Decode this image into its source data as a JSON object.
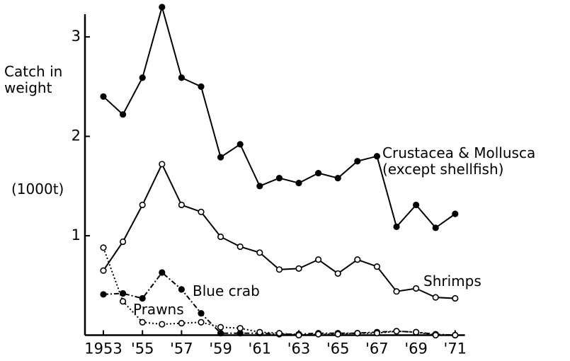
{
  "chart_data": {
    "type": "line",
    "y_label": "Catch in weight",
    "y_unit": "(1000t)",
    "x": [
      1953,
      1954,
      1955,
      1956,
      1957,
      1958,
      1959,
      1960,
      1961,
      1962,
      1963,
      1964,
      1965,
      1966,
      1967,
      1968,
      1969,
      1970,
      1971
    ],
    "series": [
      {
        "name": "Crustacea & Mollusca (except shellfish)",
        "color": "#000000",
        "dash": "solid",
        "marker": "filled",
        "values": [
          2.4,
          2.22,
          2.59,
          3.3,
          2.59,
          2.5,
          1.79,
          1.92,
          1.5,
          1.58,
          1.53,
          1.63,
          1.58,
          1.75,
          1.8,
          1.09,
          1.31,
          1.08,
          1.22
        ]
      },
      {
        "name": "Shrimps",
        "color": "#000000",
        "dash": "solid",
        "marker": "open",
        "values": [
          0.65,
          0.94,
          1.31,
          1.72,
          1.31,
          1.24,
          0.99,
          0.89,
          0.83,
          0.66,
          0.67,
          0.76,
          0.62,
          0.76,
          0.69,
          0.44,
          0.47,
          0.38,
          0.37
        ]
      },
      {
        "name": "Blue crab",
        "color": "#000000",
        "dash": "dashdot",
        "marker": "filled",
        "values": [
          0.41,
          0.42,
          0.37,
          0.63,
          0.46,
          0.22,
          0.02,
          0.02,
          0.02,
          0.01,
          0.01,
          0.02,
          0.02,
          0.02,
          0.03,
          0.04,
          0.03,
          0.01,
          0.0
        ]
      },
      {
        "name": "Prawns",
        "color": "#000000",
        "dash": "dotted",
        "marker": "open",
        "values": [
          0.88,
          0.34,
          0.13,
          0.11,
          0.12,
          0.13,
          0.08,
          0.07,
          0.03,
          0.02,
          0.0,
          0.01,
          0.01,
          0.02,
          0.02,
          0.04,
          0.03,
          0.0,
          0.0
        ]
      }
    ],
    "xlim": [
      1952,
      1971.5
    ],
    "ylim": [
      0,
      3.35
    ],
    "xticks": [
      {
        "value": 1953,
        "label": "1953"
      },
      {
        "value": 1955,
        "label": "'55"
      },
      {
        "value": 1957,
        "label": "'57"
      },
      {
        "value": 1959,
        "label": "'59"
      },
      {
        "value": 1961,
        "label": "'61"
      },
      {
        "value": 1963,
        "label": "'63"
      },
      {
        "value": 1965,
        "label": "'65"
      },
      {
        "value": 1967,
        "label": "'67"
      },
      {
        "value": 1969,
        "label": "'69"
      },
      {
        "value": 1971,
        "label": "'71"
      }
    ],
    "yticks": [
      1,
      2,
      3
    ]
  }
}
